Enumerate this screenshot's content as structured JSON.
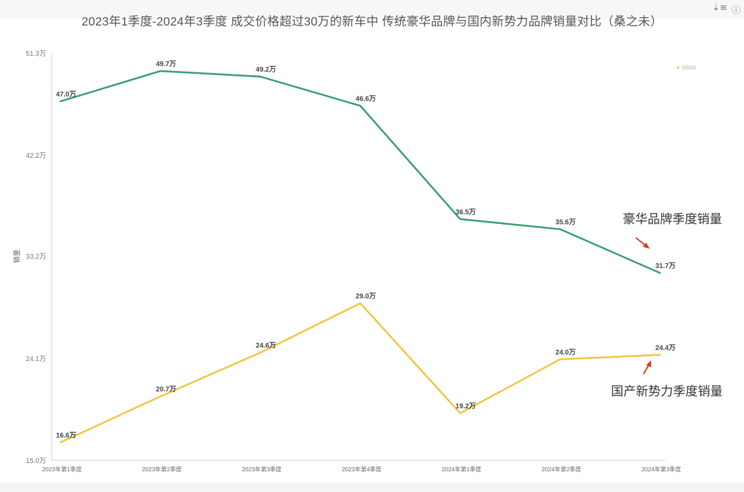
{
  "toolbar": {
    "sort_icon": "sort-icon",
    "info_icon": "info-icon"
  },
  "colors": {
    "luxury": "#3a9f6f",
    "domestic": "#efc63f",
    "arrow": "#d93a1f",
    "axis": "#cccccc"
  },
  "chart_data": {
    "type": "line",
    "title": "2023年1季度-2024年3季度 成交价格超过30万的新车中 传统豪华品牌与国内新势力品牌销量对比（桑之未）",
    "xlabel": "",
    "ylabel": "销量",
    "categories": [
      "2023年第1季度",
      "2023年第2季度",
      "2023年第3季度",
      "2023年第4季度",
      "2024年第1季度",
      "2024年第2季度",
      "2024年第3季度"
    ],
    "ylim": [
      15.0,
      51.3
    ],
    "yticks": [
      "51.3万",
      "42.2万",
      "33.2万",
      "24.1万",
      "15.0万"
    ],
    "ytick_values": [
      51.3,
      42.2,
      33.2,
      24.1,
      15.0
    ],
    "grid": false,
    "series": [
      {
        "name": "豪华品牌季度销量",
        "values": [
          47.0,
          49.7,
          49.2,
          46.6,
          36.5,
          35.6,
          31.7
        ],
        "labels": [
          "47.0万",
          "49.7万",
          "49.2万",
          "46.6万",
          "36.5万",
          "35.6万",
          "31.7万"
        ]
      },
      {
        "name": "国产新势力季度销量",
        "values": [
          16.6,
          20.7,
          24.6,
          29.0,
          19.2,
          24.0,
          24.4
        ],
        "labels": [
          "16.6万",
          "20.7万",
          "24.6万",
          "29.0万",
          "19.2万",
          "24.0万",
          "24.4万"
        ]
      }
    ]
  }
}
